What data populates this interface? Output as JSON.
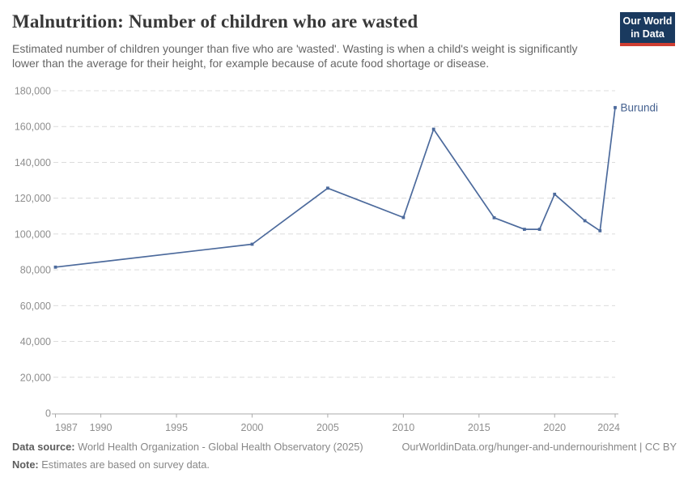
{
  "header": {
    "title": "Malnutrition: Number of children who are wasted",
    "subtitle": "Estimated number of children younger than five who are 'wasted'. Wasting is when a child's weight is significantly lower than the average for their height, for example because of acute food shortage or disease.",
    "logo_line1": "Our World",
    "logo_line2": "in Data",
    "logo_bg_color": "#1a3a5f",
    "logo_stripe_color": "#cf3e32"
  },
  "chart_data": {
    "type": "line",
    "title": "Malnutrition: Number of children who are wasted",
    "xlabel": "",
    "ylabel": "",
    "xlim": [
      1987,
      2024
    ],
    "ylim": [
      0,
      180000
    ],
    "xticks": [
      1987,
      1990,
      1995,
      2000,
      2005,
      2010,
      2015,
      2020,
      2024
    ],
    "yticks": [
      0,
      20000,
      40000,
      60000,
      80000,
      100000,
      120000,
      140000,
      160000,
      180000
    ],
    "grid": "horizontal-dashed",
    "legend_position": "line-end-label",
    "series": [
      {
        "name": "Burundi",
        "color": "#4c6a9c",
        "label_color": "#44608f",
        "x": [
          1987,
          2000,
          2005,
          2010,
          2012,
          2016,
          2018,
          2019,
          2020,
          2022,
          2023,
          2024
        ],
        "values": [
          81500,
          94300,
          125600,
          109200,
          158500,
          109100,
          102600,
          102600,
          122200,
          107400,
          101800,
          170600
        ]
      }
    ]
  },
  "footer": {
    "data_source_label": "Data source:",
    "data_source_value": "World Health Organization - Global Health Observatory (2025)",
    "credit": "OurWorldinData.org/hunger-and-undernourishment | CC BY",
    "note_label": "Note:",
    "note_value": "Estimates are based on survey data."
  }
}
